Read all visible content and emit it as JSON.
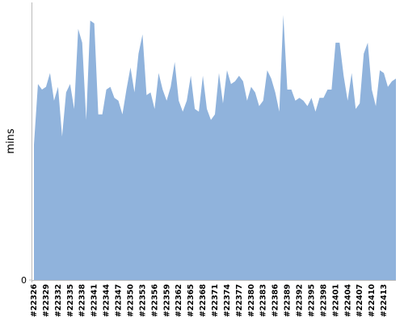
{
  "chart_data": {
    "type": "area",
    "ylabel": "mins",
    "color": "#90b3dc",
    "categories": [
      "#22326",
      null,
      null,
      "#22329",
      null,
      null,
      "#22332",
      null,
      null,
      "#22335",
      null,
      null,
      "#22338",
      null,
      null,
      "#22341",
      null,
      null,
      "#22344",
      null,
      null,
      "#22347",
      null,
      null,
      "#22350",
      null,
      null,
      "#22353",
      null,
      null,
      "#22356",
      null,
      null,
      "#22359",
      null,
      null,
      "#22362",
      null,
      null,
      "#22365",
      null,
      null,
      "#22368",
      null,
      null,
      "#22371",
      null,
      null,
      "#22374",
      null,
      null,
      "#22377",
      null,
      null,
      "#22380",
      null,
      null,
      "#22383",
      null,
      null,
      "#22386",
      null,
      null,
      "#22389",
      null,
      null,
      "#22392",
      null,
      null,
      "#22395",
      null,
      null,
      "#22398",
      null,
      null,
      "#22401",
      null,
      null,
      "#22404",
      null,
      null,
      "#22407",
      null,
      null,
      "#22410",
      null,
      null,
      "#22413",
      null,
      null,
      null
    ],
    "values": [
      49,
      71,
      69,
      70,
      75,
      65,
      70,
      52,
      68,
      71,
      62,
      91,
      86,
      58,
      94,
      93,
      60,
      60,
      69,
      70,
      66,
      65,
      60,
      69,
      77,
      68,
      82,
      89,
      67,
      68,
      62,
      75,
      69,
      65,
      70,
      79,
      65,
      61,
      65,
      74,
      62,
      61,
      74,
      62,
      58,
      60,
      75,
      64,
      76,
      71,
      72,
      74,
      72,
      65,
      70,
      68,
      63,
      65,
      76,
      73,
      68,
      61,
      96,
      69,
      69,
      65,
      66,
      65,
      63,
      66,
      61,
      66,
      66,
      69,
      69,
      86,
      86,
      74,
      65,
      75,
      62,
      64,
      82,
      86,
      69,
      63,
      76,
      75,
      70,
      72,
      73
    ],
    "ylim": [
      0,
      100
    ],
    "yticks": [
      0
    ]
  }
}
